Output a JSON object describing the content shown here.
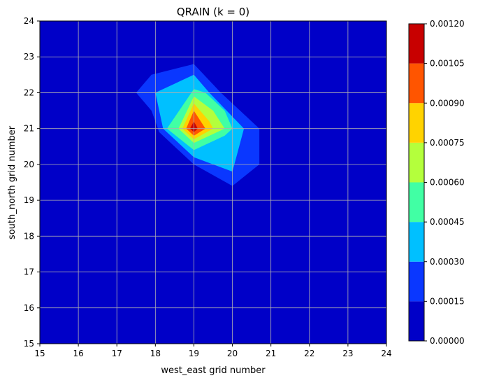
{
  "chart_data": {
    "type": "heatmap",
    "title": "QRAIN (k = 0)",
    "xlabel": "west_east grid number",
    "ylabel": "south_north grid number",
    "xlim": [
      15,
      24
    ],
    "ylim": [
      15,
      24
    ],
    "xticks": [
      "15",
      "16",
      "17",
      "18",
      "19",
      "20",
      "21",
      "22",
      "23",
      "24"
    ],
    "yticks": [
      "15",
      "16",
      "17",
      "18",
      "19",
      "20",
      "21",
      "22",
      "23",
      "24"
    ],
    "grid": true,
    "colormap": "jet",
    "colorbar": {
      "levels": [
        0.0,
        0.00015,
        0.0003,
        0.00045,
        0.0006,
        0.00075,
        0.0009,
        0.00105,
        0.0012
      ],
      "tick_labels": [
        "0.00000",
        "0.00015",
        "0.00030",
        "0.00045",
        "0.00060",
        "0.00075",
        "0.00090",
        "0.00105",
        "0.00120"
      ],
      "colors": [
        "#0000c8",
        "#0a37ff",
        "#00c0ff",
        "#41ffa4",
        "#b4ff3c",
        "#ffd300",
        "#ff5500",
        "#c80000"
      ]
    },
    "contour_bands": [
      {
        "level_index": 1,
        "points": [
          [
            17.5,
            22.0
          ],
          [
            17.9,
            22.5
          ],
          [
            19.0,
            22.8
          ],
          [
            19.7,
            22.0
          ],
          [
            20.7,
            21.0
          ],
          [
            20.7,
            20.0
          ],
          [
            20.0,
            19.4
          ],
          [
            19.0,
            20.0
          ],
          [
            18.1,
            20.9
          ],
          [
            17.9,
            21.5
          ]
        ]
      },
      {
        "level_index": 2,
        "points": [
          [
            18.0,
            22.0
          ],
          [
            19.0,
            22.5
          ],
          [
            19.4,
            22.0
          ],
          [
            20.3,
            21.0
          ],
          [
            20.0,
            19.8
          ],
          [
            19.0,
            20.2
          ],
          [
            18.2,
            21.0
          ]
        ]
      },
      {
        "level_index": 3,
        "points": [
          [
            18.3,
            21.0
          ],
          [
            19.0,
            22.1
          ],
          [
            19.3,
            22.0
          ],
          [
            19.8,
            21.5
          ],
          [
            20.0,
            21.0
          ],
          [
            19.8,
            20.8
          ],
          [
            19.0,
            20.4
          ]
        ]
      },
      {
        "level_index": 4,
        "points": [
          [
            18.6,
            21.0
          ],
          [
            19.0,
            21.9
          ],
          [
            19.5,
            21.5
          ],
          [
            19.8,
            21.0
          ],
          [
            19.0,
            20.6
          ]
        ]
      },
      {
        "level_index": 5,
        "points": [
          [
            18.7,
            21.0
          ],
          [
            19.0,
            21.7
          ],
          [
            19.4,
            21.2
          ],
          [
            19.5,
            21.0
          ],
          [
            19.0,
            20.7
          ]
        ]
      },
      {
        "level_index": 6,
        "points": [
          [
            18.8,
            21.0
          ],
          [
            19.0,
            21.5
          ],
          [
            19.3,
            21.0
          ],
          [
            19.0,
            20.8
          ]
        ]
      },
      {
        "level_index": 7,
        "points": [
          [
            18.9,
            21.0
          ],
          [
            19.0,
            21.2
          ],
          [
            19.1,
            21.0
          ],
          [
            19.0,
            20.9
          ]
        ]
      }
    ]
  }
}
